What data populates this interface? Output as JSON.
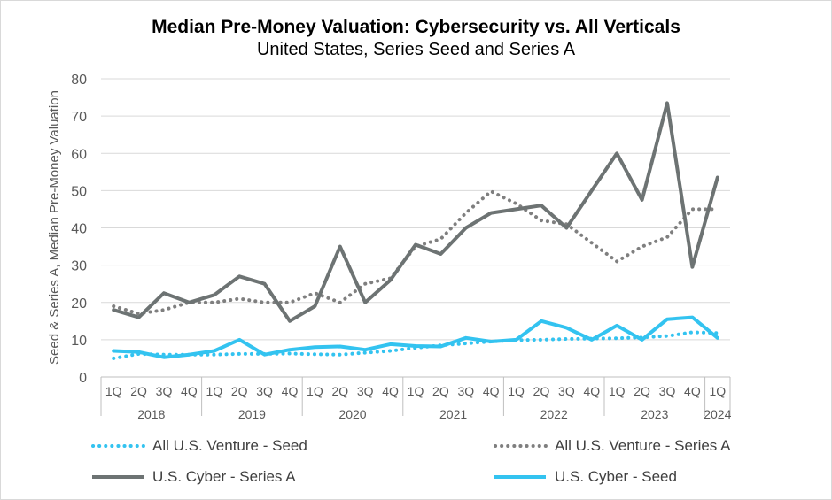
{
  "title": "Median Pre-Money Valuation: Cybersecurity vs. All Verticals",
  "subtitle": "United States, Series Seed and Series A",
  "chart_data": {
    "type": "line",
    "ylabel": "Seed & Series A, Median Pre-Money Valuation",
    "ylim": [
      0,
      80
    ],
    "yticks": [
      0,
      10,
      20,
      30,
      40,
      50,
      60,
      70,
      80
    ],
    "grid": true,
    "legend_position": "bottom",
    "categories": [
      "1Q",
      "2Q",
      "3Q",
      "4Q",
      "1Q",
      "2Q",
      "3Q",
      "4Q",
      "1Q",
      "2Q",
      "3Q",
      "4Q",
      "1Q",
      "2Q",
      "3Q",
      "4Q",
      "1Q",
      "2Q",
      "3Q",
      "4Q",
      "1Q",
      "2Q",
      "3Q",
      "4Q",
      "1Q"
    ],
    "year_groups": [
      {
        "label": "2018",
        "count": 4
      },
      {
        "label": "2019",
        "count": 4
      },
      {
        "label": "2020",
        "count": 4
      },
      {
        "label": "2021",
        "count": 4
      },
      {
        "label": "2022",
        "count": 4
      },
      {
        "label": "2023",
        "count": 4
      },
      {
        "label": "2024",
        "count": 1
      }
    ],
    "series": [
      {
        "name": "All U.S. Venture - Seed",
        "color": "#33c3f0",
        "style": "dotted",
        "values": [
          5,
          6.2,
          6,
          6,
          6,
          6.2,
          6.2,
          6.3,
          6.1,
          6,
          6.5,
          7,
          7.8,
          8.5,
          9,
          9.5,
          9.9,
          10,
          10.2,
          10.3,
          10.4,
          10.6,
          11,
          12,
          11.8
        ]
      },
      {
        "name": "All U.S. Venture - Series A",
        "color": "#7f7f7f",
        "style": "dotted",
        "values": [
          19,
          17,
          18,
          20,
          20,
          21,
          20,
          20,
          22.5,
          20,
          25,
          26.5,
          35,
          37,
          44,
          49.8,
          46.5,
          42,
          41,
          36,
          31,
          35,
          37.5,
          45,
          45
        ]
      },
      {
        "name": "U.S. Cyber - Series A",
        "color": "#6d7373",
        "style": "solid",
        "values": [
          18,
          16,
          22.5,
          20,
          22,
          27,
          25,
          15,
          19,
          35,
          20,
          26,
          35.5,
          33,
          40,
          44,
          45,
          46,
          40,
          50,
          60,
          47.5,
          73.5,
          29.5,
          53.5
        ]
      },
      {
        "name": "U.S. Cyber - Seed",
        "color": "#33c3f0",
        "style": "solid",
        "values": [
          7,
          6.7,
          5.3,
          6,
          7,
          10,
          6,
          7.3,
          8,
          8.2,
          7.3,
          8.8,
          8.3,
          8.2,
          10.5,
          9.5,
          10,
          15,
          13.2,
          10,
          13.8,
          10,
          15.5,
          16,
          10.5
        ]
      }
    ]
  }
}
